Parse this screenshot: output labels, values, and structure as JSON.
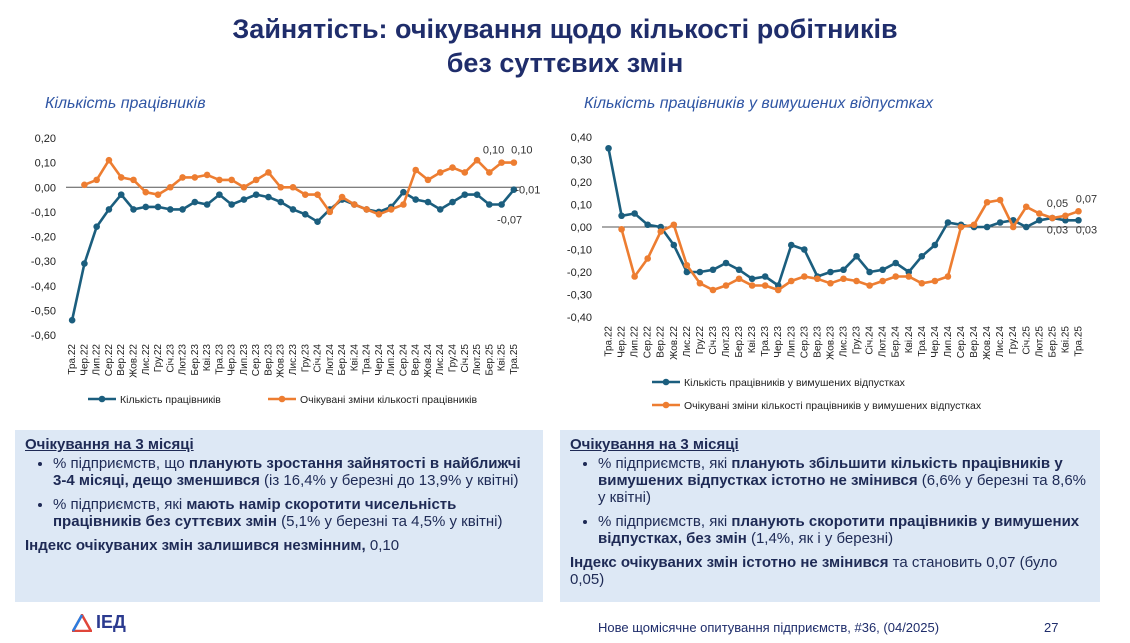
{
  "title": "Зайнятість: очікування щодо кількості робітників без суттєвих змін",
  "chart_data": [
    {
      "type": "line",
      "title": "Кількість працівників",
      "categories": [
        "Тра.22",
        "Чер.22",
        "Лип.22",
        "Сер.22",
        "Вер.22",
        "Жов.22",
        "Лис.22",
        "Гру.22",
        "Січ.23",
        "Лют.23",
        "Бер.23",
        "Кві.23",
        "Тра.23",
        "Чер.23",
        "Лип.23",
        "Сер.23",
        "Вер.23",
        "Жов.23",
        "Лис.23",
        "Гру.23",
        "Січ.24",
        "Лют.24",
        "Бер.24",
        "Кві.24",
        "Тра.24",
        "Чер.24",
        "Лип.24",
        "Сер.24",
        "Вер.24",
        "Жов.24",
        "Лис.24",
        "Гру.24",
        "Січ.25",
        "Лют.25",
        "Бер.25",
        "Кві.25",
        "Тра.25"
      ],
      "series": [
        {
          "name": "Кількість працівників",
          "color": "#1b5e7e",
          "values": [
            -0.54,
            -0.31,
            -0.16,
            -0.09,
            -0.03,
            -0.09,
            -0.08,
            -0.08,
            -0.09,
            -0.09,
            -0.06,
            -0.07,
            -0.03,
            -0.07,
            -0.05,
            -0.03,
            -0.04,
            -0.06,
            -0.09,
            -0.11,
            -0.14,
            -0.09,
            -0.05,
            -0.07,
            -0.09,
            -0.1,
            -0.08,
            -0.02,
            -0.05,
            -0.06,
            -0.09,
            -0.06,
            -0.03,
            -0.03,
            -0.07,
            -0.07,
            -0.01
          ],
          "value_labels": [
            null,
            null,
            null,
            null,
            null,
            null,
            null,
            null,
            null,
            null,
            null,
            null,
            null,
            null,
            null,
            null,
            null,
            null,
            null,
            null,
            null,
            null,
            null,
            null,
            null,
            null,
            null,
            null,
            null,
            null,
            null,
            null,
            null,
            null,
            null,
            "-0,07",
            "-0,01"
          ]
        },
        {
          "name": "Очікувані зміни кількості працівників",
          "color": "#ed7d31",
          "values": [
            null,
            0.01,
            0.03,
            0.11,
            0.04,
            0.03,
            -0.02,
            -0.03,
            0.0,
            0.04,
            0.04,
            0.05,
            0.03,
            0.03,
            0.0,
            0.03,
            0.06,
            0.0,
            0.0,
            -0.03,
            -0.03,
            -0.1,
            -0.04,
            -0.07,
            -0.09,
            -0.11,
            -0.09,
            -0.07,
            0.07,
            0.03,
            0.06,
            0.08,
            0.06,
            0.11,
            0.06,
            0.1,
            0.1
          ],
          "value_labels": [
            null,
            null,
            null,
            null,
            null,
            null,
            null,
            null,
            null,
            null,
            null,
            null,
            null,
            null,
            null,
            null,
            null,
            null,
            null,
            null,
            null,
            null,
            null,
            null,
            null,
            null,
            null,
            null,
            null,
            null,
            null,
            null,
            null,
            null,
            null,
            "0,10",
            "0,10"
          ]
        }
      ],
      "ylim": [
        -0.6,
        0.2
      ],
      "yticks": [
        {
          "value": -0.6,
          "label": "-0,60"
        },
        {
          "value": -0.5,
          "label": "-0,50"
        },
        {
          "value": -0.4,
          "label": "-0,40"
        },
        {
          "value": -0.3,
          "label": "-0,30"
        },
        {
          "value": -0.2,
          "label": "-0,20"
        },
        {
          "value": -0.1,
          "label": "-0,10"
        },
        {
          "value": 0,
          "label": "0,00"
        },
        {
          "value": 0.1,
          "label": "0,10"
        },
        {
          "value": 0.2,
          "label": "0,20"
        }
      ]
    },
    {
      "type": "line",
      "title": "Кількість працівників у вимушених відпустках",
      "categories": [
        "Тра.22",
        "Чер.22",
        "Лип.22",
        "Сер.22",
        "Вер.22",
        "Жов.22",
        "Лис.22",
        "Гру.22",
        "Січ.23",
        "Лют.23",
        "Бер.23",
        "Кві.23",
        "Тра.23",
        "Чер.23",
        "Лип.23",
        "Сер.23",
        "Вер.23",
        "Жов.23",
        "Лис.23",
        "Гру.23",
        "Січ.24",
        "Лют.24",
        "Бер.24",
        "Кві.24",
        "Тра.24",
        "Чер.24",
        "Лип.24",
        "Сер.24",
        "Вер.24",
        "Жов.24",
        "Лис.24",
        "Гру.24",
        "Січ.25",
        "Лют.25",
        "Бер.25",
        "Кві.25",
        "Тра.25"
      ],
      "series": [
        {
          "name": "Кількість працівників у вимушених відпустках",
          "color": "#1b5e7e",
          "values": [
            0.35,
            0.05,
            0.06,
            0.01,
            0.0,
            -0.08,
            -0.2,
            -0.2,
            -0.19,
            -0.16,
            -0.19,
            -0.23,
            -0.22,
            -0.26,
            -0.08,
            -0.1,
            -0.22,
            -0.2,
            -0.19,
            -0.13,
            -0.2,
            -0.19,
            -0.16,
            -0.2,
            -0.13,
            -0.08,
            0.02,
            0.01,
            0.0,
            0.0,
            0.02,
            0.03,
            0.0,
            0.03,
            0.04,
            0.03,
            0.03
          ],
          "value_labels": [
            null,
            null,
            null,
            null,
            null,
            null,
            null,
            null,
            null,
            null,
            null,
            null,
            null,
            null,
            null,
            null,
            null,
            null,
            null,
            null,
            null,
            null,
            null,
            null,
            null,
            null,
            null,
            null,
            null,
            null,
            null,
            null,
            null,
            null,
            null,
            "0,03",
            "0,03"
          ]
        },
        {
          "name": "Очікувані зміни кількості працівників у вимушених відпустках",
          "color": "#ed7d31",
          "values": [
            null,
            -0.01,
            -0.22,
            -0.14,
            -0.02,
            0.01,
            -0.17,
            -0.25,
            -0.28,
            -0.26,
            -0.23,
            -0.26,
            -0.26,
            -0.28,
            -0.24,
            -0.22,
            -0.23,
            -0.25,
            -0.23,
            -0.24,
            -0.26,
            -0.24,
            -0.22,
            -0.22,
            -0.25,
            -0.24,
            -0.22,
            0.0,
            0.01,
            0.11,
            0.12,
            0.0,
            0.09,
            0.06,
            0.04,
            0.05,
            0.07
          ],
          "value_labels": [
            null,
            null,
            null,
            null,
            null,
            null,
            null,
            null,
            null,
            null,
            null,
            null,
            null,
            null,
            null,
            null,
            null,
            null,
            null,
            null,
            null,
            null,
            null,
            null,
            null,
            null,
            null,
            null,
            null,
            null,
            null,
            null,
            null,
            null,
            null,
            "0,05",
            "0,07"
          ]
        }
      ],
      "ylim": [
        -0.4,
        0.4
      ],
      "yticks": [
        {
          "value": -0.4,
          "label": "-0,40"
        },
        {
          "value": -0.3,
          "label": "-0,30"
        },
        {
          "value": -0.2,
          "label": "-0,20"
        },
        {
          "value": -0.1,
          "label": "-0,10"
        },
        {
          "value": 0,
          "label": "0,00"
        },
        {
          "value": 0.1,
          "label": "0,10"
        },
        {
          "value": 0.2,
          "label": "0,20"
        },
        {
          "value": 0.3,
          "label": "0,30"
        },
        {
          "value": 0.4,
          "label": "0,40"
        }
      ]
    }
  ],
  "boxes": [
    {
      "heading": "Очікування на 3 місяці",
      "bullets": [
        [
          {
            "text": "% підприємств, що ",
            "bold": false
          },
          {
            "text": "планують зростання зайнятості в найближчі 3-4 місяці, дещо зменшився",
            "bold": true
          },
          {
            "text": " (із 16,4% у березні до 13,9% у квітні)",
            "bold": false
          }
        ],
        [
          {
            "text": "% підприємств, які ",
            "bold": false
          },
          {
            "text": "мають намір скоротити чисельність працівників без суттєвих змін",
            "bold": true
          },
          {
            "text": " (5,1% у березні та 4,5% у квітні)",
            "bold": false
          }
        ]
      ],
      "summary": [
        {
          "text": "Індекс очікуваних змін залишився незмінним,",
          "bold": true
        },
        {
          "text": " 0,10",
          "bold": false
        }
      ]
    },
    {
      "heading": "Очікування на 3 місяці",
      "bullets": [
        [
          {
            "text": "% підприємств, які ",
            "bold": false
          },
          {
            "text": "планують збільшити кількість працівників у вимушених відпустках істотно не змінився",
            "bold": true
          },
          {
            "text": " (6,6% у березні та 8,6% у квітні)",
            "bold": false
          }
        ],
        [
          {
            "text": "% підприємств, які ",
            "bold": false
          },
          {
            "text": "планують скоротити працівників у вимушених відпустках, без змін",
            "bold": true
          },
          {
            "text": " (1,4%, як і у березні)",
            "bold": false
          }
        ]
      ],
      "summary": [
        {
          "text": "Індекс очікуваних змін істотно не змінився",
          "bold": true
        },
        {
          "text": " та становить 0,07 (було 0,05)",
          "bold": false
        }
      ]
    }
  ],
  "footer": {
    "logo": "ІЕД",
    "source": "Нове щомісячне опитування підприємств, #36, (04/2025)",
    "page": "27"
  }
}
